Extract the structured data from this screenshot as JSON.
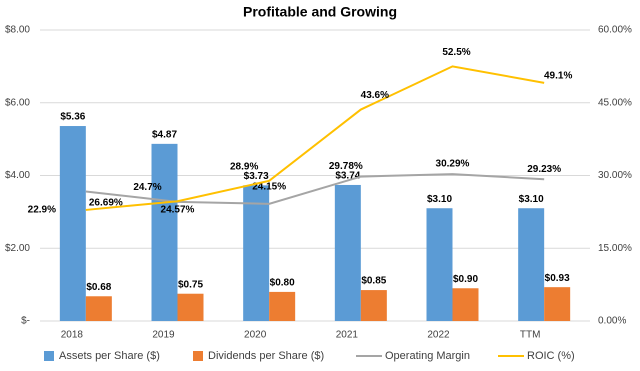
{
  "chart_data": {
    "type": "bar",
    "title": "Profitable and Growing",
    "categories": [
      "2018",
      "2019",
      "2020",
      "2021",
      "2022",
      "TTM"
    ],
    "series": [
      {
        "name": "Assets per Share ($)",
        "type": "bar",
        "color": "#5b9bd5",
        "values": [
          5.36,
          4.87,
          3.73,
          3.74,
          3.1,
          3.1
        ],
        "value_labels": [
          "$5.36",
          "$4.87",
          "$3.73",
          "$3.74",
          "$3.10",
          "$3.10"
        ]
      },
      {
        "name": "Dividends per Share ($)",
        "type": "bar",
        "color": "#ed7d31",
        "values": [
          0.68,
          0.75,
          0.8,
          0.85,
          0.9,
          0.93
        ],
        "value_labels": [
          "$0.68",
          "$0.75",
          "$0.80",
          "$0.85",
          "$0.90",
          "$0.93"
        ]
      },
      {
        "name": "Operating Margin",
        "type": "line",
        "axis": "y2",
        "color": "#a5a5a5",
        "values": [
          26.69,
          24.57,
          24.15,
          29.78,
          30.29,
          29.23
        ],
        "value_labels": [
          "26.69%",
          "24.57%",
          "24.15%",
          "29.78%",
          "30.29%",
          "29.23%"
        ]
      },
      {
        "name": "ROIC (%)",
        "type": "line",
        "axis": "y2",
        "color": "#ffc000",
        "values": [
          22.9,
          24.7,
          28.9,
          43.6,
          52.5,
          49.1
        ],
        "value_labels": [
          "22.9%",
          "24.7%",
          "28.9%",
          "43.6%",
          "52.5%",
          "49.1%"
        ]
      }
    ],
    "ylim": [
      0,
      8
    ],
    "yticks": [
      {
        "value": 0,
        "label": "$-"
      },
      {
        "value": 2,
        "label": "$2.00"
      },
      {
        "value": 4,
        "label": "$4.00"
      },
      {
        "value": 6,
        "label": "$6.00"
      },
      {
        "value": 8,
        "label": "$8.00"
      }
    ],
    "y2lim": [
      0,
      60
    ],
    "y2ticks": [
      {
        "value": 0,
        "label": "0.00%"
      },
      {
        "value": 15,
        "label": "15.00%"
      },
      {
        "value": 30,
        "label": "30.00%"
      },
      {
        "value": 45,
        "label": "45.00%"
      },
      {
        "value": 60,
        "label": "60.00%"
      }
    ],
    "grid": true,
    "legend": "bottom"
  }
}
